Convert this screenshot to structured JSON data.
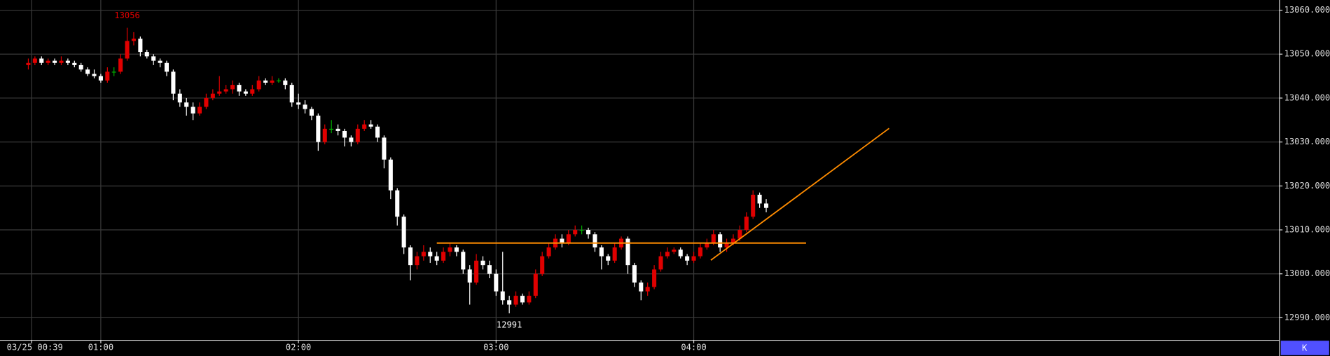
{
  "chart_data": {
    "type": "candlestick",
    "x": [
      38,
      40,
      42,
      44,
      46,
      48,
      50,
      52,
      54,
      56,
      58,
      60,
      62,
      64,
      66,
      68,
      70,
      72,
      74,
      76,
      78,
      80,
      82,
      84,
      86,
      88,
      90,
      92,
      94,
      96,
      98,
      100,
      102,
      104,
      106,
      108,
      110,
      112,
      114,
      116,
      118,
      120,
      122,
      124,
      126,
      128,
      130,
      132,
      134,
      136,
      138,
      140,
      142,
      144,
      146,
      148,
      150,
      152,
      154,
      156,
      158,
      160,
      162,
      164,
      166,
      168,
      170,
      172,
      174,
      176,
      178,
      180,
      182,
      184,
      186,
      188,
      190,
      192,
      194,
      196,
      198,
      200,
      202,
      204,
      206,
      208,
      210,
      212,
      214,
      216,
      218,
      220,
      222,
      224,
      226,
      228,
      230,
      232,
      234,
      236,
      238,
      240,
      242,
      244,
      246,
      248,
      250,
      252,
      254,
      256,
      258,
      260,
      262
    ],
    "ohlc": [
      [
        13047.5,
        13049,
        13046.5,
        13048
      ],
      [
        13048,
        13049.5,
        13047.5,
        13049
      ],
      [
        13049,
        13049.5,
        13047.5,
        13048
      ],
      [
        13048,
        13049,
        13047.5,
        13048.5
      ],
      [
        13048.5,
        13049,
        13047.5,
        13048
      ],
      [
        13048,
        13049.5,
        13047.5,
        13048.5
      ],
      [
        13048.5,
        13049,
        13047.5,
        13048
      ],
      [
        13048,
        13048.5,
        13047,
        13047.5
      ],
      [
        13047.5,
        13048,
        13046,
        13046.5
      ],
      [
        13046.5,
        13047,
        13045,
        13045.5
      ],
      [
        13045.5,
        13046.5,
        13044.5,
        13045
      ],
      [
        13045,
        13045.5,
        13043.5,
        13044
      ],
      [
        13044,
        13047,
        13043.5,
        13046
      ],
      [
        13046,
        13047,
        13045,
        13046
      ],
      [
        13046,
        13050,
        13045.5,
        13049
      ],
      [
        13049,
        13056,
        13048.5,
        13053
      ],
      [
        13053,
        13055,
        13052,
        13053.5
      ],
      [
        13053.5,
        13054,
        13049.5,
        13050.5
      ],
      [
        13050.5,
        13051,
        13049,
        13049.5
      ],
      [
        13049.5,
        13050,
        13047.5,
        13048.5
      ],
      [
        13048.5,
        13049,
        13047,
        13048
      ],
      [
        13048,
        13048.5,
        13045,
        13046
      ],
      [
        13046,
        13046.5,
        13039.5,
        13041
      ],
      [
        13041,
        13042,
        13038,
        13039
      ],
      [
        13039,
        13040,
        13036,
        13038
      ],
      [
        13038,
        13039,
        13035,
        13036.5
      ],
      [
        13036.5,
        13039,
        13036,
        13038
      ],
      [
        13038,
        13041,
        13037.5,
        13040
      ],
      [
        13040,
        13042,
        13039.5,
        13041
      ],
      [
        13041,
        13045,
        13040.5,
        13041.5
      ],
      [
        13041.5,
        13043,
        13041,
        13042
      ],
      [
        13042,
        13044,
        13041,
        13043
      ],
      [
        13043,
        13043.5,
        13040.5,
        13041.5
      ],
      [
        13041.5,
        13042,
        13040.5,
        13041
      ],
      [
        13041,
        13043,
        13040.5,
        13042
      ],
      [
        13042,
        13045,
        13041.5,
        13044
      ],
      [
        13044,
        13044.5,
        13043,
        13043.5
      ],
      [
        13043.5,
        13045,
        13043,
        13044
      ],
      [
        13044,
        13044.5,
        13043.5,
        13044
      ],
      [
        13044,
        13044.5,
        13042,
        13043
      ],
      [
        13043,
        13043.5,
        13038,
        13039
      ],
      [
        13039,
        13041,
        13037.5,
        13038.5
      ],
      [
        13038.5,
        13039.5,
        13036.5,
        13037.5
      ],
      [
        13037.5,
        13038,
        13035,
        13036
      ],
      [
        13036,
        13036.5,
        13028,
        13030
      ],
      [
        13030,
        13034,
        13029.5,
        13033
      ],
      [
        13033,
        13035,
        13032,
        13033
      ],
      [
        13033,
        13034,
        13031.5,
        13032.5
      ],
      [
        13032.5,
        13033,
        13029,
        13031
      ],
      [
        13031,
        13031.5,
        13029,
        13030
      ],
      [
        13030,
        13034,
        13029.5,
        13033
      ],
      [
        13033,
        13035,
        13032.5,
        13034
      ],
      [
        13034,
        13035,
        13033,
        13033.5
      ],
      [
        13033.5,
        13034,
        13030,
        13031
      ],
      [
        13031,
        13031.5,
        13024,
        13026
      ],
      [
        13026,
        13026.5,
        13017,
        13019
      ],
      [
        13019,
        13019.5,
        13011,
        13013
      ],
      [
        13013,
        13013.5,
        13004.5,
        13006
      ],
      [
        13006,
        13006.5,
        12998.5,
        13002
      ],
      [
        13002,
        13005,
        13001,
        13004
      ],
      [
        13004,
        13006.5,
        13003,
        13005
      ],
      [
        13005,
        13006,
        13002.5,
        13004
      ],
      [
        13004,
        13005,
        13002,
        13003
      ],
      [
        13003,
        13006,
        13002.5,
        13005
      ],
      [
        13005,
        13007,
        13004,
        13006
      ],
      [
        13006,
        13006.5,
        13004,
        13005
      ],
      [
        13005,
        13005.5,
        13000,
        13001
      ],
      [
        13001,
        13002,
        12993,
        12998
      ],
      [
        12998,
        13004.5,
        12997.5,
        13003
      ],
      [
        13003,
        13004,
        13001,
        13002
      ],
      [
        13002,
        13003,
        12999,
        13000
      ],
      [
        13000,
        13001,
        12995,
        12996
      ],
      [
        12996,
        13005,
        12993,
        12994
      ],
      [
        12994,
        12995,
        12991,
        12993
      ],
      [
        12993,
        12996,
        12992.5,
        12995
      ],
      [
        12995,
        12995.5,
        12993,
        12993.5
      ],
      [
        12993.5,
        12996,
        12993,
        12995
      ],
      [
        12995,
        13001,
        12994.5,
        13000
      ],
      [
        13000,
        13005,
        12999.5,
        13004
      ],
      [
        13004,
        13007,
        13003.5,
        13006
      ],
      [
        13006,
        13009,
        13005.5,
        13008
      ],
      [
        13008,
        13009,
        13006,
        13007
      ],
      [
        13007,
        13010,
        13006.5,
        13009
      ],
      [
        13009,
        13011,
        13008.5,
        13010
      ],
      [
        13010,
        13011,
        13009,
        13010
      ],
      [
        13010,
        13010.5,
        13008,
        13009
      ],
      [
        13009,
        13009.5,
        13005,
        13006
      ],
      [
        13006,
        13006.5,
        13001,
        13004
      ],
      [
        13004,
        13004.5,
        13002,
        13003
      ],
      [
        13003,
        13007,
        13002.5,
        13006
      ],
      [
        13006,
        13008.5,
        13005.5,
        13008
      ],
      [
        13008,
        13008.5,
        13000,
        13002
      ],
      [
        13002,
        13002.5,
        12997,
        12998
      ],
      [
        12998,
        12998.5,
        12994,
        12996
      ],
      [
        12996,
        12998,
        12995,
        12997
      ],
      [
        12997,
        13002,
        12996.5,
        13001
      ],
      [
        13001,
        13005,
        13000.5,
        13004
      ],
      [
        13004,
        13006,
        13003.5,
        13005
      ],
      [
        13005,
        13006,
        13004.5,
        13005.5
      ],
      [
        13005.5,
        13006,
        13003.5,
        13004
      ],
      [
        13004,
        13004.5,
        13002,
        13003
      ],
      [
        13003,
        13005,
        13002.5,
        13004
      ],
      [
        13004,
        13007,
        13003.5,
        13006
      ],
      [
        13006,
        13008,
        13005.5,
        13007
      ],
      [
        13007,
        13010,
        13006.5,
        13009
      ],
      [
        13009,
        13009.5,
        13005,
        13006
      ],
      [
        13006,
        13008,
        13005,
        13007
      ],
      [
        13007,
        13009,
        13006.5,
        13008
      ],
      [
        13008,
        13011,
        13007.5,
        13010
      ],
      [
        13010,
        13014,
        13009.5,
        13013
      ],
      [
        13013,
        13019,
        13012.5,
        13018
      ],
      [
        13018,
        13018.5,
        13015,
        13016
      ],
      [
        13016,
        13017,
        13014,
        13015
      ]
    ],
    "up_color": "#e00000",
    "down_color": "#ffffff",
    "flat_color": "#00b000",
    "xlim": [
      29.4,
      417.7
    ],
    "ylim": [
      12984.97,
      13062.32
    ],
    "xticks": [
      {
        "value": 39,
        "label": "03/25 00:39"
      },
      {
        "value": 60,
        "label": "01:00"
      },
      {
        "value": 120,
        "label": "02:00"
      },
      {
        "value": 180,
        "label": "03:00"
      },
      {
        "value": 240,
        "label": "04:00"
      }
    ],
    "yticks": [
      {
        "value": 12990,
        "label": "12990.000"
      },
      {
        "value": 13000,
        "label": "13000.000"
      },
      {
        "value": 13010,
        "label": "13010.000"
      },
      {
        "value": 13020,
        "label": "13020.000"
      },
      {
        "value": 13030,
        "label": "13030.000"
      },
      {
        "value": 13040,
        "label": "13040.000"
      },
      {
        "value": 13050,
        "label": "13050.000"
      },
      {
        "value": 13060,
        "label": "13060.000"
      }
    ],
    "grid": true,
    "annotations": [
      {
        "x": 68,
        "value": 13056,
        "position": "above",
        "color": "#e00000"
      },
      {
        "x": 184,
        "value": 12991,
        "position": "below",
        "color": "#ffffff"
      }
    ],
    "trend_lines": [
      {
        "x": [
          162,
          274.1
        ],
        "y": [
          13007,
          13007
        ],
        "color": "#ff8c00"
      },
      {
        "x": [
          245.2,
          299.3
        ],
        "y": [
          13003.1,
          13033.1
        ],
        "color": "#ff8c00"
      }
    ],
    "button": "K"
  }
}
